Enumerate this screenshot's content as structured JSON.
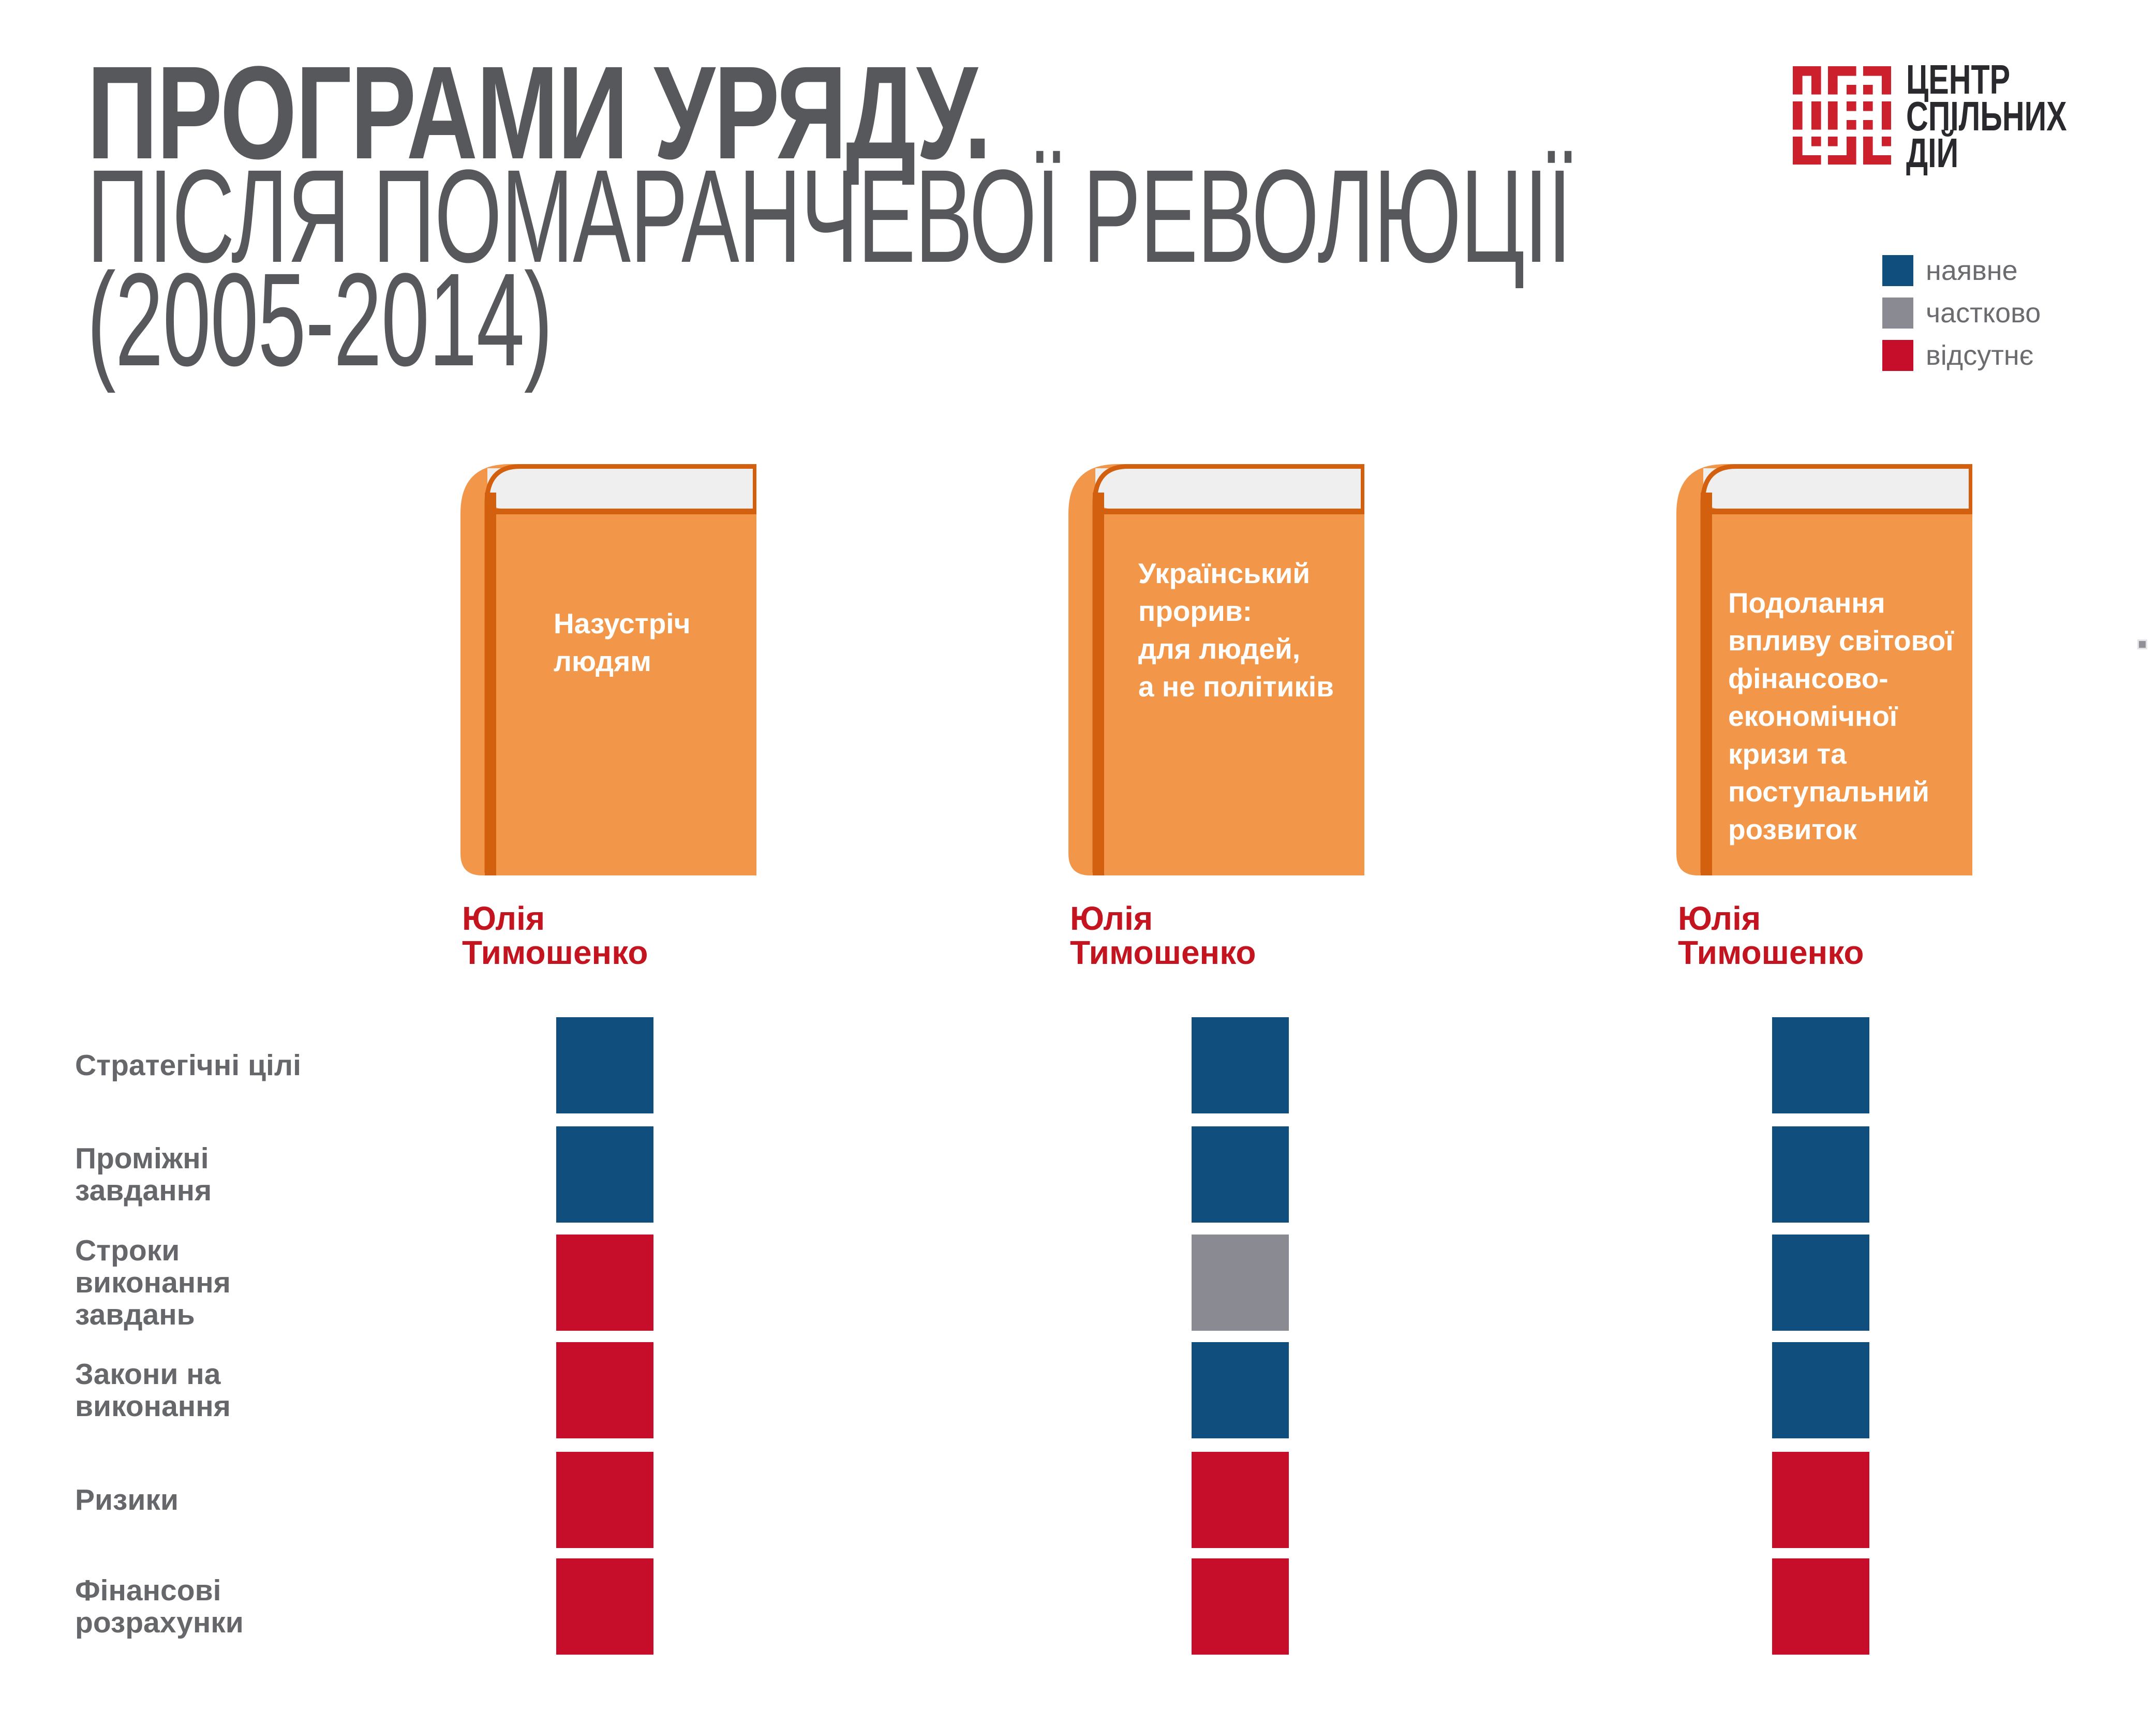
{
  "header": {
    "title_line1": "ПРОГРАМИ УРЯДУ.",
    "title_line2": "ПІСЛЯ ПОМАРАНЧЕВОЇ РЕВОЛЮЦІЇ",
    "title_line3": "(2005-2014)"
  },
  "logo": {
    "org_name": "ЦЕНТР\nСПІЛЬНИХ\nДІЙ",
    "icon": "centre-ua-grid-icon",
    "icon_color": "#CC202C",
    "text_color": "#2A2A2E"
  },
  "legend": {
    "items": [
      {
        "label": "наявне",
        "status": "present",
        "color": "#104F7D"
      },
      {
        "label": "частково",
        "status": "partial",
        "color": "#8A8B92"
      },
      {
        "label": "відсутнє",
        "status": "absent",
        "color": "#C60E2B"
      }
    ]
  },
  "books": [
    {
      "title": "Назустріч\nлюдям",
      "author": "Юлія\nТимошенко"
    },
    {
      "title": "Український\nпрорив:\nдля людей,\nа не політиків",
      "author": "Юлія\nТимошенко"
    },
    {
      "title": "Подолання\nвпливу світової\nфінансово-\nекономічної\nкризи та\nпоступальний\nрозвиток",
      "author": "Юлія\nТимошенко"
    }
  ],
  "book_colors": {
    "cover": "#F2974A",
    "edge": "#D2600F",
    "pages": "#EFEFF0",
    "author_text": "#C3141F"
  },
  "matrix": {
    "row_labels": [
      "Стратегічні цілі",
      "Проміжні\nзавдання",
      "Строки\nвиконання\nзавдань",
      "Закони на\nвиконання",
      "Ризики",
      "Фінансові\nрозрахунки"
    ],
    "columns": [
      {
        "book": "Назустріч людям",
        "statuses": [
          "present",
          "present",
          "absent",
          "absent",
          "absent",
          "absent"
        ]
      },
      {
        "book": "Український прорив: для людей, а не політиків",
        "statuses": [
          "present",
          "present",
          "partial",
          "present",
          "absent",
          "absent"
        ]
      },
      {
        "book": "Подолання впливу світової фінансово-економічної кризи та поступальний розвиток",
        "statuses": [
          "present",
          "present",
          "present",
          "present",
          "absent",
          "absent"
        ]
      }
    ],
    "status_colors": {
      "present": "#104F7D",
      "partial": "#8A8B92",
      "absent": "#C60E2B"
    }
  },
  "chart_data": {
    "type": "heatmap",
    "title": "ПРОГРАМИ УРЯДУ. ПІСЛЯ ПОМАРАНЧЕВОЇ РЕВОЛЮЦІЇ (2005-2014)",
    "rows": [
      "Стратегічні цілі",
      "Проміжні завдання",
      "Строки виконання завдань",
      "Закони на виконання",
      "Ризики",
      "Фінансові розрахунки"
    ],
    "columns": [
      "Назустріч людям — Юлія Тимошенко",
      "Український прорив: для людей, а не політиків — Юлія Тимошенко",
      "Подолання впливу світової фінансово-економічної кризи та поступальний розвиток — Юлія Тимошенко"
    ],
    "values": [
      [
        "наявне",
        "наявне",
        "наявне"
      ],
      [
        "наявне",
        "наявне",
        "наявне"
      ],
      [
        "відсутнє",
        "частково",
        "наявне"
      ],
      [
        "відсутнє",
        "наявне",
        "наявне"
      ],
      [
        "відсутнє",
        "відсутнє",
        "відсутнє"
      ],
      [
        "відсутнє",
        "відсутнє",
        "відсутнє"
      ]
    ],
    "value_colors": {
      "наявне": "#104F7D",
      "частково": "#8A8B92",
      "відсутнє": "#C60E2B"
    },
    "legend_position": "top-right",
    "grid": false
  }
}
